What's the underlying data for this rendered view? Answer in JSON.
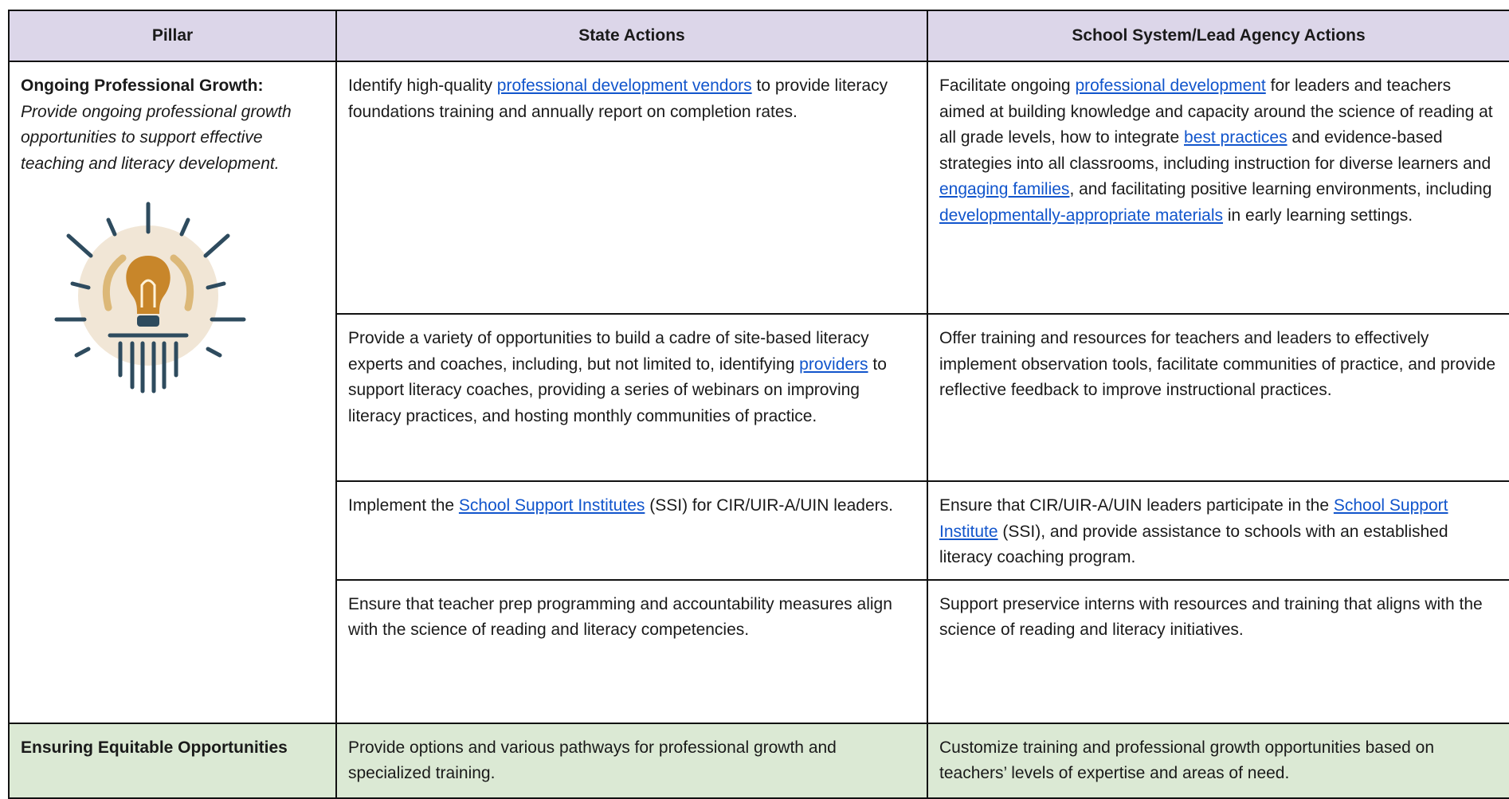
{
  "table": {
    "header": [
      "Pillar",
      "State Actions",
      "School System/Lead Agency Actions"
    ],
    "pillars": [
      {
        "title": "Ongoing Professional Growth:",
        "description": "Provide ongoing professional growth opportunities to support effective teaching and literacy development.",
        "icon": true,
        "rows": [
          {
            "state": [
              {
                "text": "Identify high-quality "
              },
              {
                "text": "professional development vendors",
                "link": true
              },
              {
                "text": " to provide literacy foundations training and annually report on completion rates."
              }
            ],
            "school": [
              {
                "text": "Facilitate ongoing "
              },
              {
                "text": "professional development",
                "link": true
              },
              {
                "text": " for leaders and teachers aimed at building knowledge and capacity around the science of reading at all grade levels, how to integrate "
              },
              {
                "text": "best practices",
                "link": true
              },
              {
                "text": " and evidence-based strategies into all classrooms, including instruction for diverse learners and "
              },
              {
                "text": "engaging families",
                "link": true
              },
              {
                "text": ", and facilitating positive learning environments, including "
              },
              {
                "text": "developmentally-appropriate materials",
                "link": true
              },
              {
                "text": " in early learning settings."
              }
            ]
          },
          {
            "state": [
              {
                "text": "Provide a variety of opportunities to build a cadre of site-based literacy experts and coaches, including, but not limited to, identifying "
              },
              {
                "text": "providers",
                "link": true
              },
              {
                "text": " to support literacy coaches, providing a series of webinars on improving literacy practices, and hosting monthly communities of practice."
              }
            ],
            "school": [
              {
                "text": "Offer training and resources for teachers and leaders to effectively implement observation tools, facilitate communities of practice, and provide reflective feedback to improve instructional practices."
              }
            ]
          },
          {
            "state": [
              {
                "text": "Implement the "
              },
              {
                "text": "School Support Institutes",
                "link": true
              },
              {
                "text": " (SSI) for CIR/UIR-A/UIN leaders."
              }
            ],
            "school": [
              {
                "text": "Ensure that CIR/UIR-A/UIN leaders participate in the "
              },
              {
                "text": "School Support Institute",
                "link": true
              },
              {
                "text": " (SSI), and provide assistance to schools with an established literacy coaching program."
              }
            ]
          },
          {
            "state": [
              {
                "text": "Ensure that teacher prep programming and accountability measures align with the science of reading and literacy competencies."
              }
            ],
            "school": [
              {
                "text": "Support preservice interns with resources and training that aligns with the science of reading and literacy initiatives."
              }
            ]
          }
        ]
      },
      {
        "title": "Ensuring Equitable Opportunities",
        "color": "#dbe9d4",
        "rows": [
          {
            "state": [
              {
                "text": "Provide options and various pathways for professional growth and specialized training."
              }
            ],
            "school": [
              {
                "text": "Customize training and professional growth opportunities based on teachers’ levels of expertise and areas of need."
              }
            ]
          }
        ]
      }
    ]
  }
}
